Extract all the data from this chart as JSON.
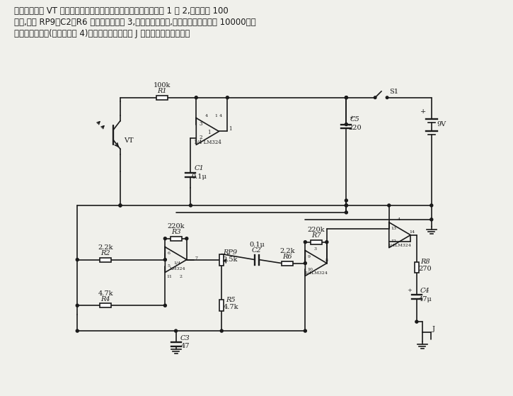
{
  "bg_color": "#f0f0eb",
  "line_color": "#1a1a1a",
  "lw": 1.2,
  "fs": 7.0,
  "title": "当光敏晶体管 VT 接收到红外辐射信号时便将信号送至运算放大器 1 和 2,经放大约 100",
  "title2": "倍后,再经 RP9、C2、R6 送至运算放大器 3,以作进一步放大,使整个系统的增益为 10000。最",
  "title3": "后经电压跟随器(运算放大器 4)驱动负载。负载抽孔 J 可接至耳机或扬声器。"
}
